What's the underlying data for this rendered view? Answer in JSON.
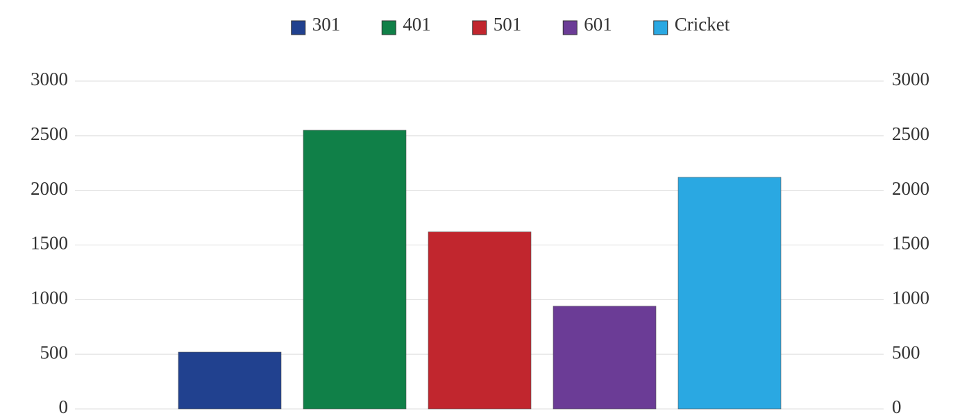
{
  "chart_data": {
    "type": "bar",
    "series": [
      {
        "name": "301",
        "color": "#21418f",
        "values": [
          520
        ]
      },
      {
        "name": "401",
        "color": "#108048",
        "values": [
          2550
        ]
      },
      {
        "name": "501",
        "color": "#c1262e",
        "values": [
          1620
        ]
      },
      {
        "name": "601",
        "color": "#6b3c96",
        "values": [
          940
        ]
      },
      {
        "name": "Cricket",
        "color": "#2aa8e2",
        "values": [
          2120
        ]
      }
    ],
    "ylim": [
      0,
      3000
    ],
    "yticks": [
      0,
      500,
      1000,
      1500,
      2000,
      2500,
      3000
    ],
    "y2lim": [
      0,
      3000
    ],
    "y2ticks": [
      0,
      500,
      1000,
      1500,
      2000,
      2500,
      3000
    ],
    "grid": true,
    "legend": "top"
  }
}
